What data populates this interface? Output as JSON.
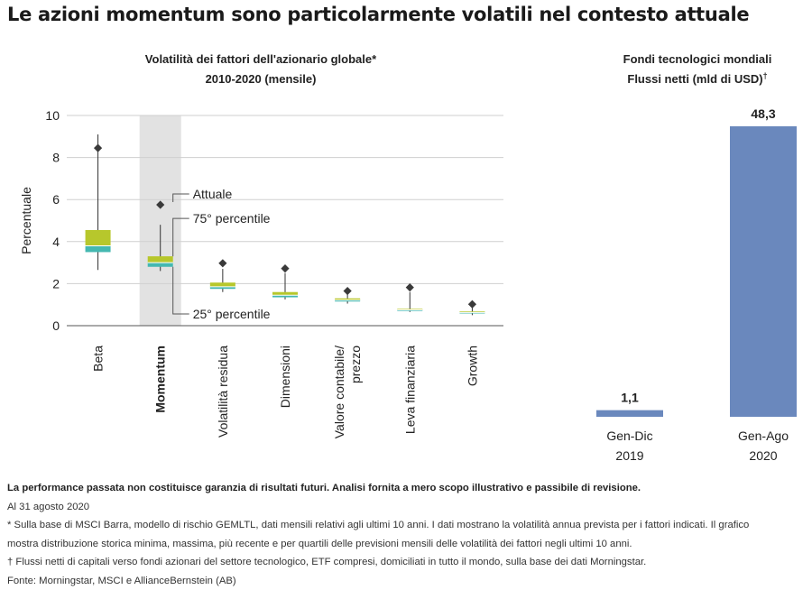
{
  "title": "Le azioni momentum sono particolarmente volatili nel contesto attuale",
  "colors": {
    "box_upper": "#b7c72c",
    "box_lower": "#44b8b1",
    "divider": "#ffffff",
    "whisker": "#333333",
    "diamond": "#3a3a3a",
    "highlight": "#e2e2e2",
    "grid": "#cfcfcf",
    "bar": "#6a88bd"
  },
  "chart_data": [
    {
      "type": "box",
      "title_line1": "Volatilità dei fattori dell'azionario globale*",
      "title_line2": "2010-2020 (mensile)",
      "ylabel": "Percentuale",
      "ylim": [
        0,
        10
      ],
      "yticks": [
        "0",
        "2",
        "4",
        "6",
        "8",
        "10"
      ],
      "highlight_category": "Momentum",
      "categories": [
        {
          "label": "Beta",
          "label_lines": [
            "Beta"
          ],
          "min": 2.65,
          "q1": 3.5,
          "median": 3.8,
          "q3": 4.55,
          "max": 9.1,
          "current": 8.45
        },
        {
          "label": "Momentum",
          "label_lines": [
            "Momentum"
          ],
          "min": 2.6,
          "q1": 2.8,
          "median": 3.0,
          "q3": 3.3,
          "max": 4.8,
          "current": 5.75
        },
        {
          "label": "Volatilità residua",
          "label_lines": [
            "Volatilità residua"
          ],
          "min": 1.6,
          "q1": 1.75,
          "median": 1.85,
          "q3": 2.05,
          "max": 2.7,
          "current": 2.97
        },
        {
          "label": "Dimensioni",
          "label_lines": [
            "Dimensioni"
          ],
          "min": 1.25,
          "q1": 1.35,
          "median": 1.45,
          "q3": 1.6,
          "max": 2.5,
          "current": 2.72
        },
        {
          "label": "Valore contabile/prezzo",
          "label_lines": [
            "Valore contabile/",
            "prezzo"
          ],
          "min": 1.05,
          "q1": 1.15,
          "median": 1.22,
          "q3": 1.3,
          "max": 1.55,
          "current": 1.65
        },
        {
          "label": "Leva finanziaria",
          "label_lines": [
            "Leva finanziaria"
          ],
          "min": 0.65,
          "q1": 0.7,
          "median": 0.75,
          "q3": 0.8,
          "max": 1.6,
          "current": 1.82
        },
        {
          "label": "Growth",
          "label_lines": [
            "Growth"
          ],
          "min": 0.5,
          "q1": 0.58,
          "median": 0.63,
          "q3": 0.68,
          "max": 0.9,
          "current": 1.02
        }
      ],
      "annotations": {
        "current": "Attuale",
        "q3": "75° percentile",
        "q1": "25° percentile"
      }
    },
    {
      "type": "bar",
      "title_line1": "Fondi tecnologici mondiali",
      "title_line2": "Flussi netti (mld di USD)",
      "title_mark": "†",
      "ylim": [
        0,
        48.3
      ],
      "bars": [
        {
          "label_line1": "Gen-Dic",
          "label_line2": "2019",
          "value": 1.1,
          "value_label": "1,1"
        },
        {
          "label_line1": "Gen-Ago",
          "label_line2": "2020",
          "value": 48.3,
          "value_label": "48,3"
        }
      ]
    }
  ],
  "footnotes": {
    "disclaimer": "La performance passata non costituisce garanzia di risultati futuri. Analisi fornita a mero scopo illustrativo e passibile di revisione.",
    "date": "Al 31 agosto 2020",
    "note1": "* Sulla base di MSCI Barra, modello di rischio GEMLTL, dati mensili relativi agli ultimi 10 anni. I dati mostrano la volatilità annua prevista per i fattori indicati. Il grafico",
    "note1_cont": "mostra distribuzione storica minima, massima, più recente e per quartili delle previsioni mensili delle volatilità dei fattori negli ultimi 10 anni.",
    "note2": "† Flussi netti di capitali verso fondi azionari del settore tecnologico, ETF compresi, domiciliati in tutto il mondo, sulla base dei dati Morningstar.",
    "source": "Fonte: Morningstar, MSCI e AllianceBernstein (AB)"
  }
}
